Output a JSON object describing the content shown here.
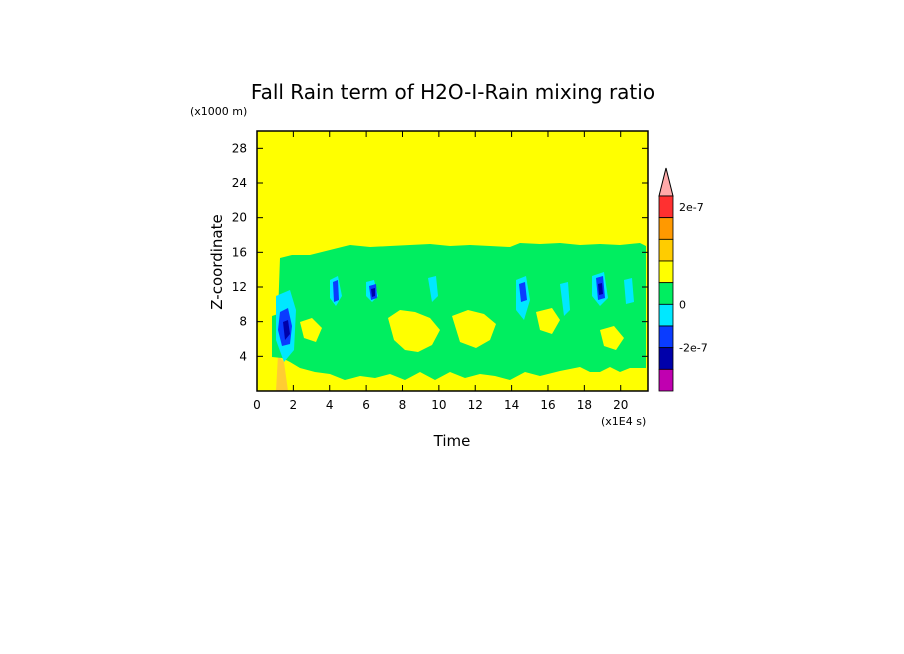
{
  "chart_data": {
    "type": "heatmap",
    "title": "Fall Rain term of H2O-I-Rain mixing ratio",
    "xlabel": "Time",
    "ylabel": "Z-coordinate",
    "x_unit": "(x1E4 s)",
    "y_unit": "(x1000 m)",
    "xlim": [
      0,
      21.5
    ],
    "ylim": [
      0,
      30
    ],
    "x_ticks": [
      "0",
      "2",
      "4",
      "6",
      "8",
      "10",
      "12",
      "14",
      "16",
      "18",
      "20"
    ],
    "y_ticks": [
      "4",
      "8",
      "12",
      "16",
      "20",
      "24",
      "28"
    ],
    "colorbar": {
      "labels": [
        "2e-7",
        "0",
        "-2e-7"
      ],
      "levels": [
        {
          "value": 3.5e-07,
          "color": "#ffaaaa",
          "kind": "overflow"
        },
        {
          "value": 2e-07,
          "color": "#ff3030"
        },
        {
          "value": 1.5e-07,
          "color": "#ff9900"
        },
        {
          "value": 1e-07,
          "color": "#ffcc00"
        },
        {
          "value": 5e-08,
          "color": "#ffff00"
        },
        {
          "value": 0,
          "color": "#00ee60"
        },
        {
          "value": -5e-08,
          "color": "#00e8ff"
        },
        {
          "value": -1e-07,
          "color": "#0a3cff"
        },
        {
          "value": -2e-07,
          "color": "#0000aa"
        },
        {
          "value": -3e-07,
          "color": "#c000b0"
        }
      ]
    },
    "regions": {
      "background": "#ffff00",
      "active_band_z": [
        3,
        16
      ],
      "active_time_start": 1.0,
      "strong_negative_cores": [
        {
          "time": 1.5,
          "z": 7.5
        },
        {
          "time": 4.6,
          "z": 11.5
        },
        {
          "time": 6.4,
          "z": 11.5
        },
        {
          "time": 14.6,
          "z": 11.5
        },
        {
          "time": 19.1,
          "z": 11.8
        }
      ]
    }
  }
}
